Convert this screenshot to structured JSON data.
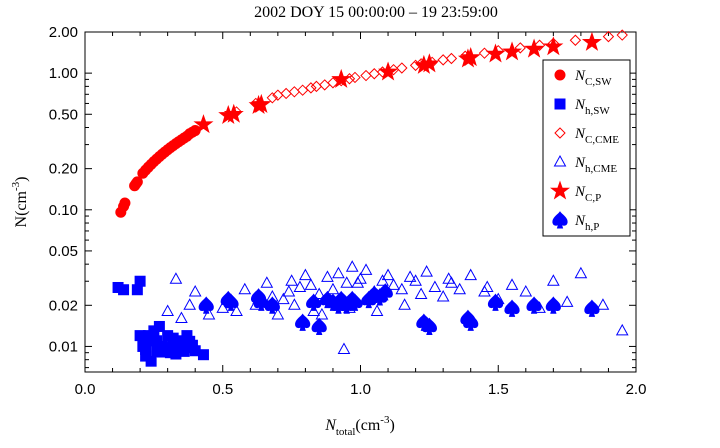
{
  "chart_data": {
    "type": "scatter",
    "title": "2002 DOY 15 00:00:00 – 19 23:59:00",
    "xlabel": {
      "main": "N",
      "sub": "total",
      "unit_pre": "(cm",
      "unit_sup": "-3",
      "unit_post": ")"
    },
    "ylabel": {
      "main": "N(cm",
      "sup": "-3",
      "post": ")"
    },
    "xlim": [
      0.0,
      2.0
    ],
    "ylim": [
      0.0065,
      2.0
    ],
    "yscale": "log",
    "grid": false,
    "legend_position": "right",
    "x_ticks": [
      {
        "value": 0.0,
        "label": "0.0"
      },
      {
        "value": 0.5,
        "label": "0.5"
      },
      {
        "value": 1.0,
        "label": "1.0"
      },
      {
        "value": 1.5,
        "label": "1.5"
      },
      {
        "value": 2.0,
        "label": "2.0"
      }
    ],
    "y_ticks": [
      {
        "value": 0.01,
        "label": "0.01"
      },
      {
        "value": 0.02,
        "label": "0.02"
      },
      {
        "value": 0.05,
        "label": "0.05"
      },
      {
        "value": 0.1,
        "label": "0.10"
      },
      {
        "value": 0.2,
        "label": "0.20"
      },
      {
        "value": 0.5,
        "label": "0.50"
      },
      {
        "value": 1.0,
        "label": "1.00"
      },
      {
        "value": 2.0,
        "label": "2.00"
      }
    ],
    "series": [
      {
        "name": "N_C,SW",
        "label_main": "N",
        "label_sub": "C,SW",
        "marker": "circle",
        "color": "#ff0000",
        "filled": true,
        "x": [
          0.13,
          0.14,
          0.145,
          0.18,
          0.185,
          0.19,
          0.21,
          0.22,
          0.23,
          0.24,
          0.25,
          0.26,
          0.27,
          0.28,
          0.29,
          0.3,
          0.31,
          0.32,
          0.33,
          0.34,
          0.35,
          0.36,
          0.37,
          0.38,
          0.39,
          0.4
        ],
        "y": [
          0.096,
          0.106,
          0.112,
          0.15,
          0.155,
          0.16,
          0.185,
          0.195,
          0.205,
          0.215,
          0.225,
          0.235,
          0.245,
          0.255,
          0.265,
          0.275,
          0.285,
          0.295,
          0.305,
          0.315,
          0.325,
          0.335,
          0.345,
          0.36,
          0.37,
          0.38
        ]
      },
      {
        "name": "N_h,SW",
        "label_main": "N",
        "label_sub": "h,SW",
        "marker": "square",
        "color": "#0000ff",
        "filled": true,
        "x": [
          0.12,
          0.14,
          0.19,
          0.2,
          0.2,
          0.21,
          0.22,
          0.23,
          0.24,
          0.25,
          0.26,
          0.27,
          0.28,
          0.29,
          0.3,
          0.31,
          0.32,
          0.33,
          0.34,
          0.35,
          0.36,
          0.37,
          0.38,
          0.39,
          0.4,
          0.43,
          0.22,
          0.24,
          0.26,
          0.3,
          0.32,
          0.35,
          0.38,
          0.28,
          0.33
        ],
        "y": [
          0.027,
          0.026,
          0.026,
          0.03,
          0.012,
          0.01,
          0.0085,
          0.012,
          0.0078,
          0.013,
          0.011,
          0.014,
          0.01,
          0.0095,
          0.012,
          0.009,
          0.0105,
          0.0088,
          0.011,
          0.0095,
          0.0092,
          0.012,
          0.0098,
          0.0102,
          0.0093,
          0.0087,
          0.0095,
          0.011,
          0.0092,
          0.0098,
          0.0115,
          0.0104,
          0.0109,
          0.0091,
          0.0097
        ]
      },
      {
        "name": "N_C,CME",
        "label_main": "N",
        "label_sub": "C,CME",
        "marker": "diamond",
        "color": "#ff0000",
        "filled": false,
        "x": [
          0.55,
          0.62,
          0.68,
          0.7,
          0.73,
          0.76,
          0.79,
          0.82,
          0.84,
          0.87,
          0.9,
          0.93,
          0.96,
          0.98,
          1.02,
          1.05,
          1.08,
          1.12,
          1.15,
          1.2,
          1.22,
          1.26,
          1.3,
          1.33,
          1.38,
          1.45,
          1.5,
          1.58,
          1.65,
          1.7,
          1.78,
          1.9,
          1.95
        ],
        "y": [
          0.52,
          0.6,
          0.66,
          0.69,
          0.71,
          0.73,
          0.75,
          0.78,
          0.8,
          0.82,
          0.85,
          0.88,
          0.91,
          0.93,
          0.96,
          0.99,
          1.02,
          1.06,
          1.09,
          1.14,
          1.17,
          1.2,
          1.25,
          1.28,
          1.33,
          1.4,
          1.46,
          1.53,
          1.6,
          1.65,
          1.74,
          1.85,
          1.9
        ]
      },
      {
        "name": "N_h,CME",
        "label_main": "N",
        "label_sub": "h,CME",
        "marker": "triangle",
        "color": "#0000ff",
        "filled": false,
        "x": [
          0.3,
          0.33,
          0.35,
          0.38,
          0.4,
          0.45,
          0.5,
          0.55,
          0.58,
          0.62,
          0.66,
          0.68,
          0.72,
          0.75,
          0.78,
          0.8,
          0.82,
          0.85,
          0.88,
          0.9,
          0.92,
          0.95,
          0.97,
          1.0,
          1.02,
          1.05,
          1.08,
          1.1,
          1.12,
          1.15,
          1.18,
          1.2,
          1.24,
          1.27,
          1.3,
          1.33,
          1.36,
          1.4,
          1.45,
          1.5,
          1.55,
          1.6,
          1.65,
          1.7,
          1.75,
          1.8,
          1.88,
          1.95,
          0.7,
          0.76,
          0.83,
          0.9,
          0.96,
          1.06,
          1.16,
          1.22,
          0.63,
          0.74,
          0.86,
          0.99,
          1.32,
          1.46,
          0.94
        ],
        "y": [
          0.018,
          0.031,
          0.016,
          0.02,
          0.025,
          0.017,
          0.019,
          0.018,
          0.026,
          0.02,
          0.029,
          0.023,
          0.022,
          0.03,
          0.027,
          0.033,
          0.028,
          0.024,
          0.032,
          0.026,
          0.034,
          0.029,
          0.038,
          0.031,
          0.036,
          0.025,
          0.03,
          0.033,
          0.028,
          0.026,
          0.032,
          0.03,
          0.035,
          0.027,
          0.023,
          0.029,
          0.026,
          0.033,
          0.025,
          0.022,
          0.028,
          0.025,
          0.019,
          0.03,
          0.021,
          0.034,
          0.02,
          0.013,
          0.017,
          0.02,
          0.018,
          0.021,
          0.019,
          0.018,
          0.02,
          0.024,
          0.022,
          0.025,
          0.017,
          0.029,
          0.031,
          0.027,
          0.0095
        ]
      },
      {
        "name": "N_C,P",
        "label_main": "N",
        "label_sub": "C,P",
        "marker": "star",
        "color": "#ff0000",
        "filled": true,
        "x": [
          0.43,
          0.52,
          0.54,
          0.63,
          0.64,
          0.93,
          1.1,
          1.23,
          1.25,
          1.39,
          1.4,
          1.49,
          1.55,
          1.63,
          1.7,
          1.84
        ],
        "y": [
          0.42,
          0.49,
          0.5,
          0.58,
          0.59,
          0.9,
          1.02,
          1.14,
          1.17,
          1.27,
          1.3,
          1.38,
          1.43,
          1.5,
          1.56,
          1.68
        ]
      },
      {
        "name": "N_h,P",
        "label_main": "N",
        "label_sub": "h,P",
        "marker": "spade",
        "color": "#0000ff",
        "filled": true,
        "x": [
          0.44,
          0.52,
          0.53,
          0.63,
          0.64,
          0.68,
          0.79,
          0.83,
          0.85,
          0.88,
          0.9,
          0.93,
          0.95,
          0.98,
          1.03,
          1.05,
          1.07,
          1.09,
          1.23,
          1.25,
          1.39,
          1.4,
          1.49,
          1.55,
          1.63,
          1.7,
          1.84,
          0.92,
          0.97
        ],
        "y": [
          0.02,
          0.022,
          0.021,
          0.023,
          0.021,
          0.02,
          0.015,
          0.021,
          0.014,
          0.022,
          0.021,
          0.022,
          0.02,
          0.021,
          0.022,
          0.024,
          0.023,
          0.025,
          0.015,
          0.014,
          0.016,
          0.015,
          0.021,
          0.019,
          0.02,
          0.02,
          0.019,
          0.02,
          0.022
        ]
      }
    ]
  }
}
